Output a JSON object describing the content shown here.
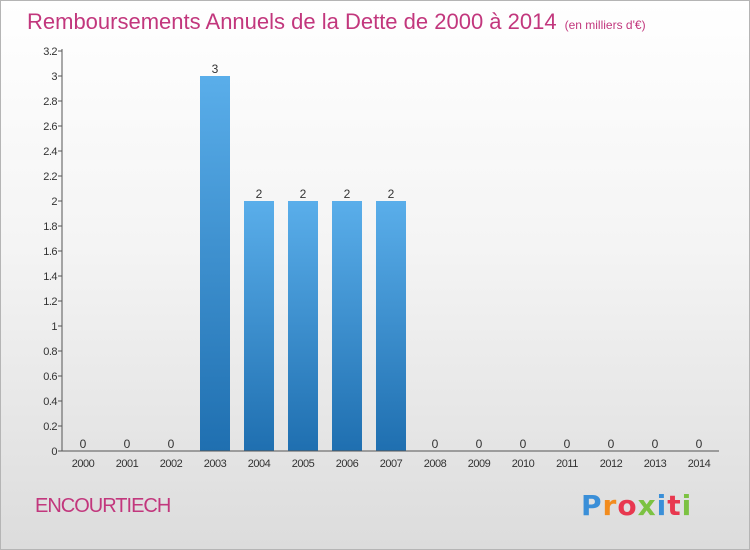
{
  "header": {
    "title": "Remboursements Annuels de la Dette de 2000 à 2014",
    "subtitle": "(en milliers d'€)"
  },
  "footer": {
    "commune": "ENCOURTIECH",
    "brand": "Proxiti"
  },
  "colors": {
    "title": "#c2377d",
    "bar_top": "#5aaeea",
    "bar_bottom": "#1f6fb0",
    "axis": "#555555",
    "logo": [
      "#3a8fd8",
      "#f28c1e",
      "#e8384f",
      "#7cc242",
      "#3a8fd8",
      "#e8384f",
      "#7cc242"
    ]
  },
  "chart_data": {
    "type": "bar",
    "title": "Remboursements Annuels de la Dette de 2000 à 2014",
    "subtitle": "(en milliers d'€)",
    "categories": [
      "2000",
      "2001",
      "2002",
      "2003",
      "2004",
      "2005",
      "2006",
      "2007",
      "2008",
      "2009",
      "2010",
      "2011",
      "2012",
      "2013",
      "2014"
    ],
    "values": [
      0,
      0,
      0,
      3,
      2,
      2,
      2,
      2,
      0,
      0,
      0,
      0,
      0,
      0,
      0
    ],
    "data_labels": [
      "0",
      "0",
      "0",
      "3",
      "2",
      "2",
      "2",
      "2",
      "0",
      "0",
      "0",
      "0",
      "0",
      "0",
      "0"
    ],
    "yticks": [
      "0",
      "0.2",
      "0.4",
      "0.6",
      "0.8",
      "1",
      "1.2",
      "1.4",
      "1.6",
      "1.8",
      "2",
      "2.2",
      "2.4",
      "2.6",
      "2.8",
      "3",
      "3.2"
    ],
    "ylim": [
      0,
      3.2
    ],
    "xlabel": "",
    "ylabel": "",
    "grid": false
  }
}
